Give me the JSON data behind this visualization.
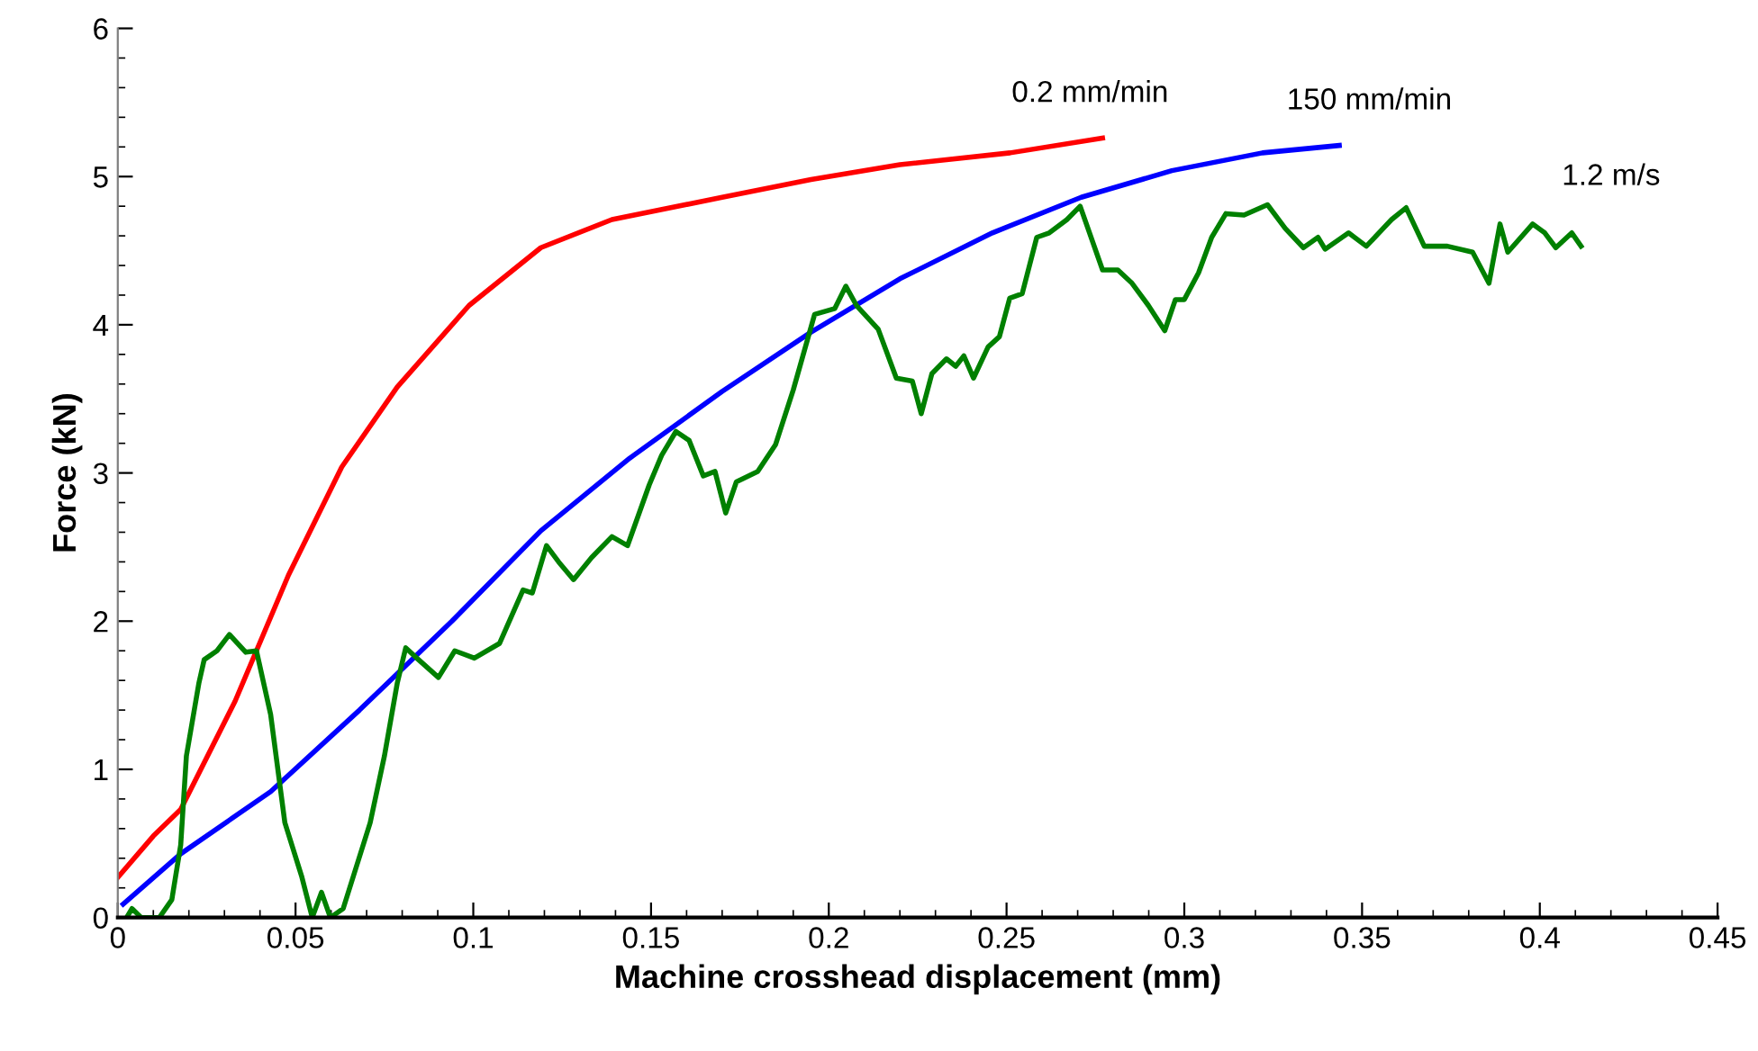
{
  "chart_data": {
    "type": "line",
    "xlabel": "Machine crosshead displacement (mm)",
    "ylabel": "Force (kN)",
    "xlim": [
      0,
      0.45
    ],
    "ylim": [
      0,
      6
    ],
    "xticks": [
      0,
      0.05,
      0.1,
      0.15,
      0.2,
      0.25,
      0.3,
      0.35,
      0.4,
      0.45
    ],
    "yticks": [
      0,
      1,
      2,
      3,
      4,
      5,
      6
    ],
    "grid": false,
    "legend": false,
    "marker": "none",
    "line_style": "solid",
    "series": [
      {
        "name": "0.2 mm/min",
        "color": "#ff0000",
        "x": [
          0,
          0.01,
          0.0177,
          0.033,
          0.048,
          0.063,
          0.0786,
          0.0988,
          0.119,
          0.139,
          0.17,
          0.195,
          0.22,
          0.251,
          0.277
        ],
        "values": [
          0.27,
          0.55,
          0.73,
          1.46,
          2.31,
          3.04,
          3.58,
          4.13,
          4.52,
          4.71,
          4.86,
          4.98,
          5.08,
          5.16,
          5.26
        ]
      },
      {
        "name": "150 mm/min",
        "color": "#0000ff",
        "x": [
          0.0015,
          0.0177,
          0.043,
          0.068,
          0.094,
          0.119,
          0.144,
          0.17,
          0.195,
          0.22,
          0.246,
          0.271,
          0.2965,
          0.322,
          0.3436
        ],
        "values": [
          0.09,
          0.43,
          0.85,
          1.4,
          2.0,
          2.61,
          3.1,
          3.55,
          3.95,
          4.31,
          4.62,
          4.86,
          5.04,
          5.16,
          5.21
        ]
      },
      {
        "name": "1.2 m/s",
        "color": "#008000",
        "x": [
          0.0025,
          0.004,
          0.0066,
          0.0117,
          0.0152,
          0.0177,
          0.0193,
          0.0228,
          0.0243,
          0.0279,
          0.0314,
          0.036,
          0.039,
          0.043,
          0.047,
          0.0517,
          0.0547,
          0.0573,
          0.0598,
          0.0634,
          0.071,
          0.075,
          0.0786,
          0.081,
          0.0846,
          0.0902,
          0.0948,
          0.1003,
          0.1074,
          0.114,
          0.1166,
          0.1206,
          0.124,
          0.1282,
          0.1333,
          0.139,
          0.1434,
          0.1495,
          0.153,
          0.157,
          0.1607,
          0.1647,
          0.168,
          0.171,
          0.174,
          0.18,
          0.185,
          0.19,
          0.196,
          0.2017,
          0.2048,
          0.2078,
          0.2139,
          0.219,
          0.2235,
          0.226,
          0.229,
          0.2331,
          0.2357,
          0.238,
          0.2407,
          0.2448,
          0.248,
          0.2509,
          0.2544,
          0.2585,
          0.262,
          0.267,
          0.2707,
          0.277,
          0.2813,
          0.2853,
          0.2899,
          0.2945,
          0.2975,
          0.3,
          0.304,
          0.3077,
          0.3117,
          0.3168,
          0.3234,
          0.3284,
          0.3335,
          0.3376,
          0.3396,
          0.3462,
          0.3512,
          0.3583,
          0.3624,
          0.3675,
          0.374,
          0.3811,
          0.3857,
          0.3888,
          0.391,
          0.398,
          0.4014,
          0.4045,
          0.409,
          0.4116
        ],
        "values": [
          0,
          0.06,
          0,
          0,
          0.12,
          0.49,
          1.09,
          1.58,
          1.74,
          1.8,
          1.91,
          1.79,
          1.8,
          1.37,
          0.64,
          0.28,
          0,
          0.17,
          0,
          0.06,
          0.64,
          1.09,
          1.58,
          1.82,
          1.74,
          1.62,
          1.8,
          1.75,
          1.85,
          2.21,
          2.19,
          2.51,
          2.4,
          2.28,
          2.43,
          2.57,
          2.51,
          2.92,
          3.12,
          3.28,
          3.22,
          2.98,
          3.01,
          2.73,
          2.94,
          3.01,
          3.19,
          3.56,
          4.07,
          4.11,
          4.26,
          4.13,
          3.97,
          3.64,
          3.62,
          3.4,
          3.67,
          3.77,
          3.72,
          3.79,
          3.64,
          3.85,
          3.92,
          4.18,
          4.21,
          4.59,
          4.62,
          4.71,
          4.8,
          4.37,
          4.37,
          4.28,
          4.13,
          3.96,
          4.17,
          4.17,
          4.35,
          4.59,
          4.75,
          4.74,
          4.81,
          4.65,
          4.52,
          4.59,
          4.51,
          4.62,
          4.53,
          4.71,
          4.79,
          4.53,
          4.53,
          4.49,
          4.28,
          4.68,
          4.49,
          4.68,
          4.62,
          4.52,
          4.62,
          4.53
        ]
      }
    ]
  }
}
